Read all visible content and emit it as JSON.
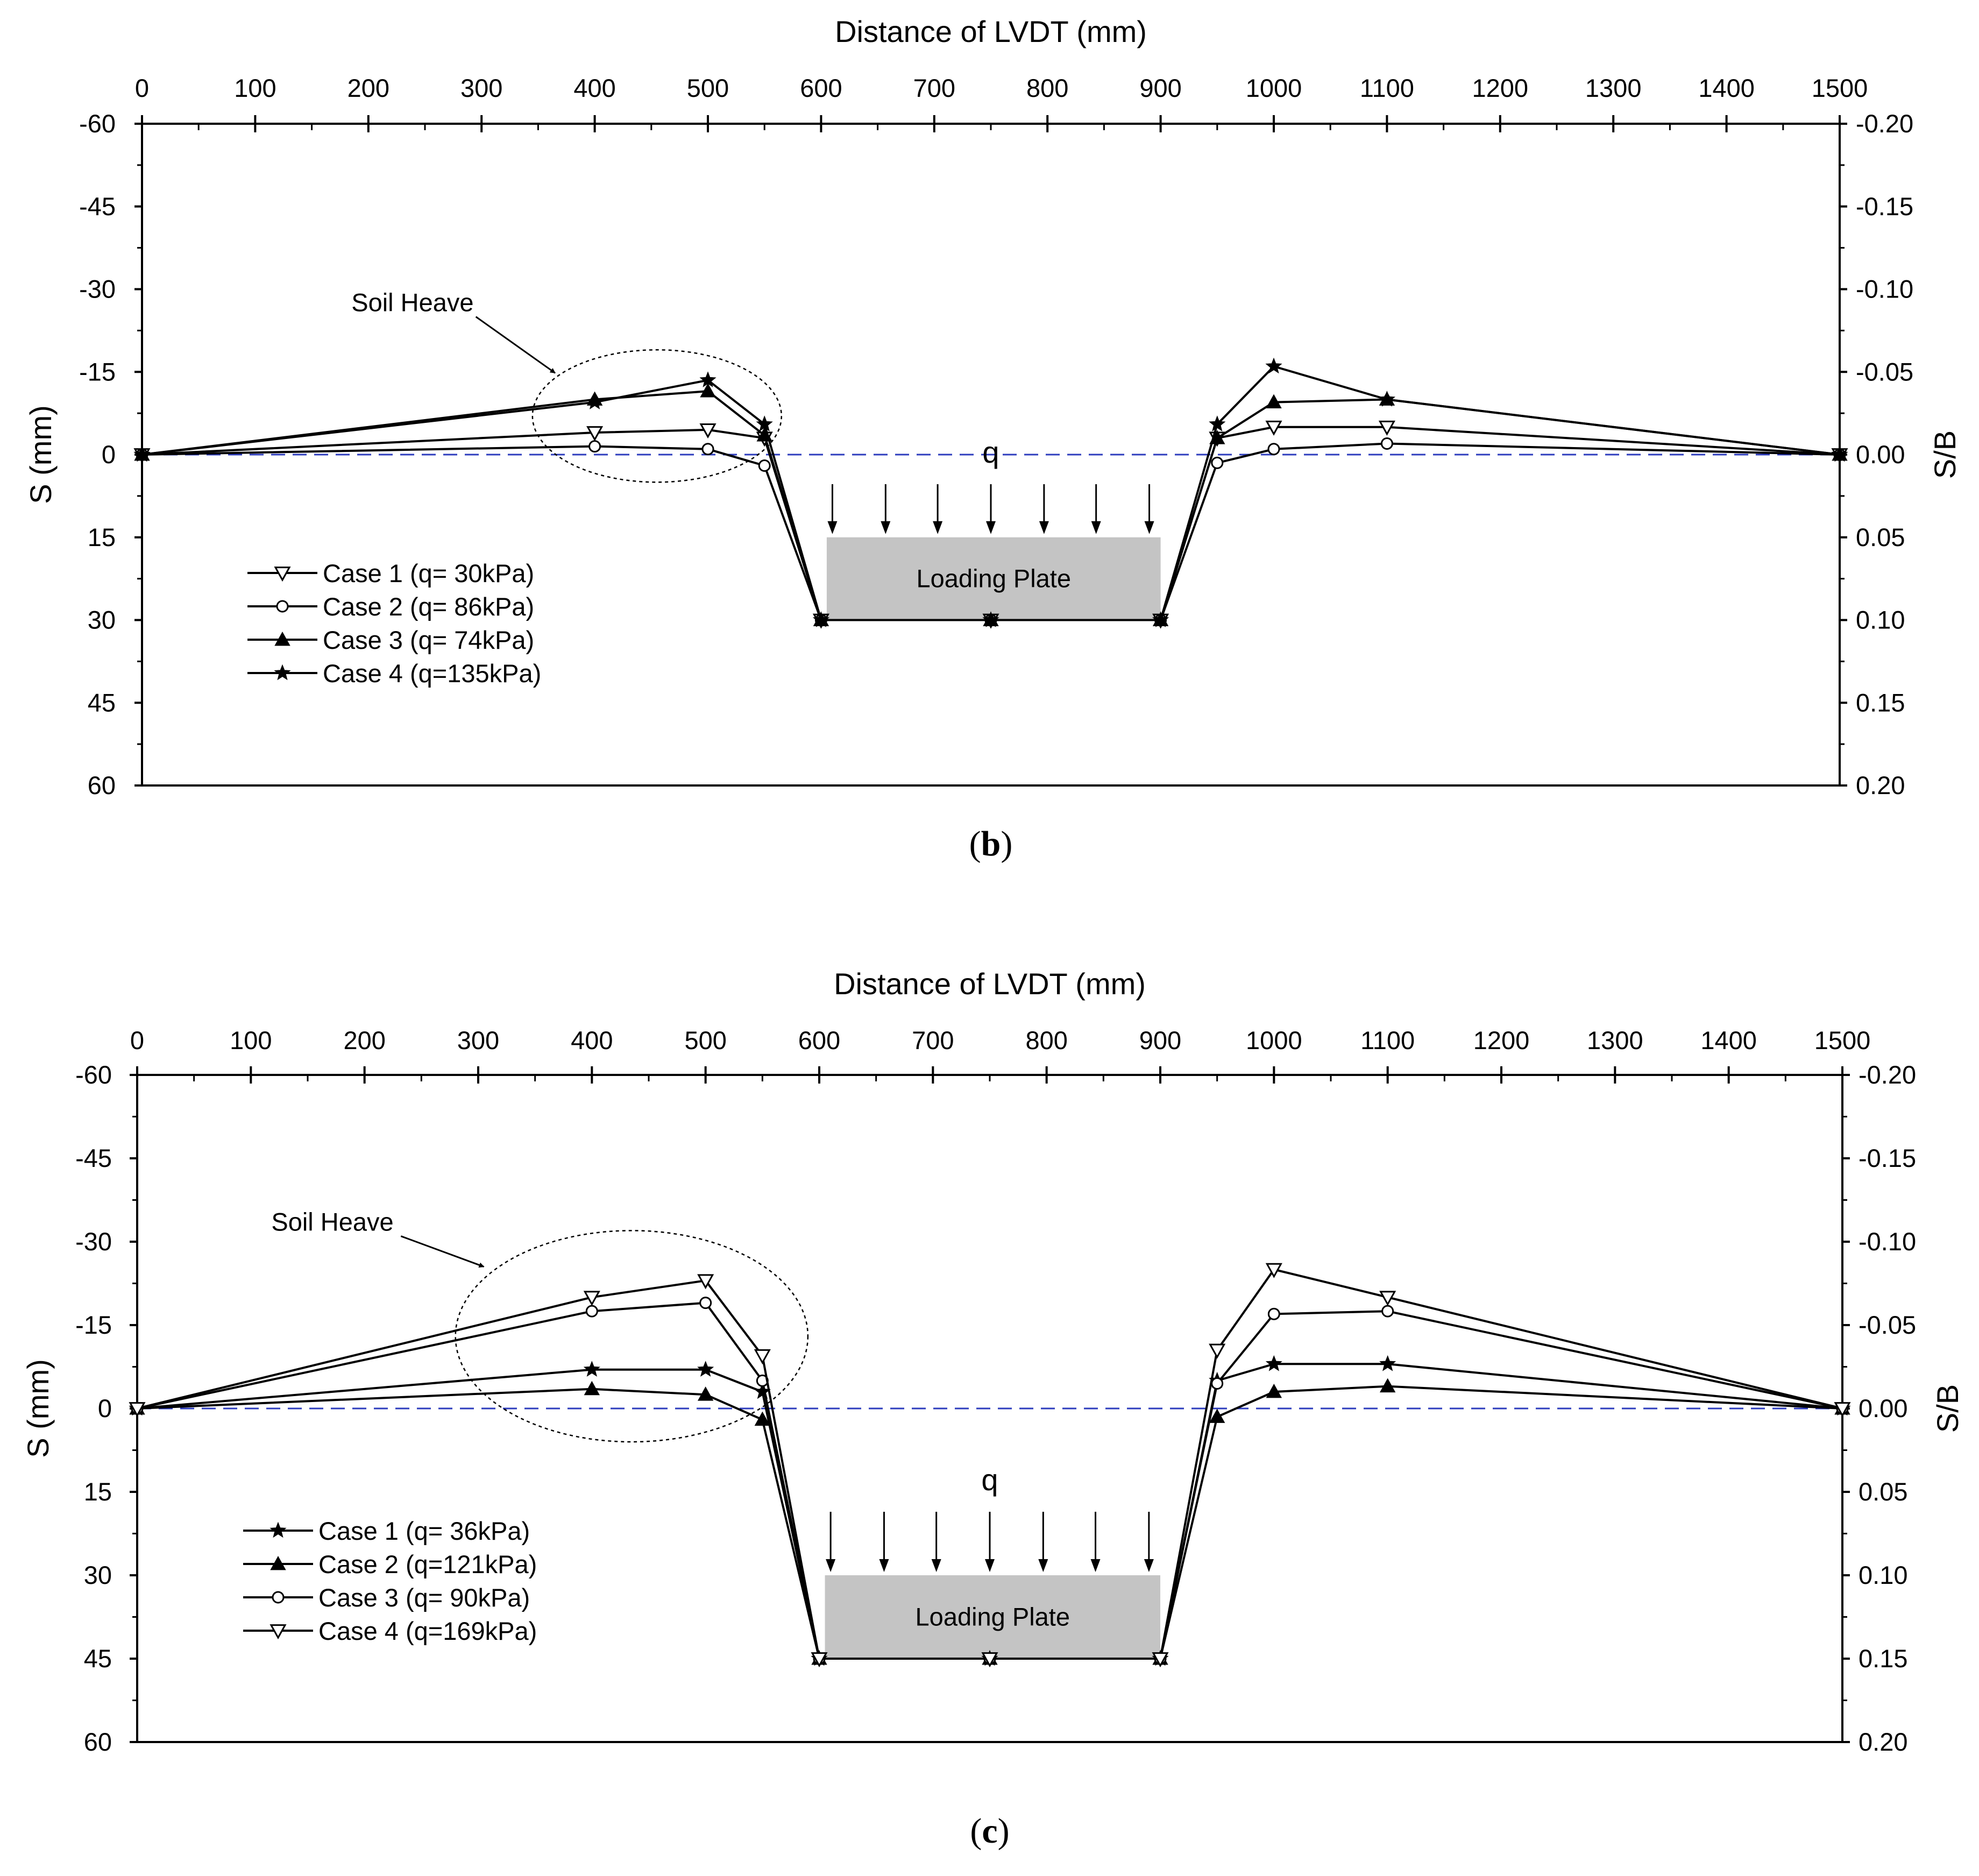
{
  "chart_data": [
    {
      "id": "b",
      "type": "line",
      "caption": {
        "open": "(",
        "letter": "b",
        "close": ")"
      },
      "xlabel": "Distance of LVDT (mm)",
      "ylabel": "S (mm)",
      "y2label": "S/B",
      "xlim": [
        0,
        1500
      ],
      "ylim": [
        -60,
        60
      ],
      "y_inverted": true,
      "xticks": [
        0,
        100,
        200,
        300,
        400,
        500,
        600,
        700,
        800,
        900,
        1000,
        1100,
        1200,
        1300,
        1400,
        1500
      ],
      "xticks_minor": [
        50,
        150,
        250,
        350,
        450,
        550,
        650,
        750,
        850,
        950,
        1050,
        1150,
        1250,
        1350,
        1450
      ],
      "yticks": [
        "-60",
        "-45",
        "-30",
        "-15",
        "0",
        "15",
        "30",
        "45",
        "60"
      ],
      "y2ticks": [
        "-0.20",
        "-0.15",
        "-0.10",
        "-0.05",
        "0.00",
        "0.05",
        "0.10",
        "0.15",
        "0.20"
      ],
      "reference_line": {
        "y": 0,
        "color": "#2e3dbd"
      },
      "load_label": "q",
      "arrows_x": [
        610,
        657,
        703,
        750,
        797,
        843,
        890
      ],
      "plate": {
        "x": [
          605,
          900
        ],
        "y": [
          15,
          30
        ],
        "label": "Loading Plate",
        "color": "#c4c4c4"
      },
      "annotation": {
        "text": "Soil Heave",
        "text_at": [
          185,
          -26
        ],
        "arrow_from": [
          295,
          -25
        ],
        "arrow_to": [
          365,
          -14.8
        ],
        "ellipse_center": [
          455,
          -7
        ],
        "ellipse_radius": [
          110,
          12
        ]
      },
      "series": [
        {
          "name": "Case 1 (q= 30kPa)",
          "marker": "tri-down-open",
          "x": [
            0,
            400,
            500,
            550,
            600,
            750,
            900,
            950,
            1000,
            1100,
            1500
          ],
          "y": [
            0,
            -4,
            -4.5,
            -3,
            30,
            30,
            30,
            -3,
            -5,
            -5,
            0
          ]
        },
        {
          "name": "Case 2 (q= 86kPa)",
          "marker": "circle-open",
          "x": [
            0,
            400,
            500,
            550,
            600,
            750,
            900,
            950,
            1000,
            1100,
            1500
          ],
          "y": [
            0,
            -1.5,
            -1,
            2,
            30,
            30,
            30,
            1.5,
            -1,
            -2,
            0
          ]
        },
        {
          "name": "Case 3 (q= 74kPa)",
          "marker": "tri-up-filled",
          "x": [
            0,
            400,
            500,
            550,
            600,
            750,
            900,
            950,
            1000,
            1100,
            1500
          ],
          "y": [
            0,
            -10,
            -11.5,
            -3.5,
            30,
            30,
            30,
            -3,
            -9.5,
            -10,
            0
          ]
        },
        {
          "name": "Case 4 (q=135kPa)",
          "marker": "star-filled",
          "x": [
            0,
            400,
            500,
            550,
            600,
            750,
            900,
            950,
            1000,
            1100,
            1500
          ],
          "y": [
            0,
            -9.5,
            -13.5,
            -5.5,
            30,
            30,
            30,
            -5.5,
            -16,
            -10,
            0
          ]
        }
      ]
    },
    {
      "id": "c",
      "type": "line",
      "caption": {
        "open": "(",
        "letter": "c",
        "close": ")"
      },
      "xlabel": "Distance of LVDT (mm)",
      "ylabel": "S (mm)",
      "y2label": "S/B",
      "xlim": [
        0,
        1500
      ],
      "ylim": [
        -60,
        60
      ],
      "y_inverted": true,
      "xticks": [
        0,
        100,
        200,
        300,
        400,
        500,
        600,
        700,
        800,
        900,
        1000,
        1100,
        1200,
        1300,
        1400,
        1500
      ],
      "xticks_minor": [
        50,
        150,
        250,
        350,
        450,
        550,
        650,
        750,
        850,
        950,
        1050,
        1150,
        1250,
        1350,
        1450
      ],
      "yticks": [
        "-60",
        "-45",
        "-30",
        "-15",
        "0",
        "15",
        "30",
        "45",
        "60"
      ],
      "y2ticks": [
        "-0.20",
        "-0.15",
        "-0.10",
        "-0.05",
        "0.00",
        "0.05",
        "0.10",
        "0.15",
        "0.20"
      ],
      "reference_line": {
        "y": 0,
        "color": "#2e3dbd"
      },
      "load_label": "q",
      "arrows_x": [
        610,
        657,
        703,
        750,
        797,
        843,
        890
      ],
      "plate": {
        "x": [
          605,
          900
        ],
        "y": [
          30,
          45
        ],
        "label": "Loading Plate",
        "color": "#c4c4c4"
      },
      "annotation": {
        "text": "Soil Heave",
        "text_at": [
          118,
          -32
        ],
        "arrow_from": [
          232,
          -31
        ],
        "arrow_to": [
          305,
          -25.5
        ],
        "ellipse_center": [
          435,
          -13
        ],
        "ellipse_radius": [
          155,
          19
        ]
      },
      "series": [
        {
          "name": "Case 1 (q= 36kPa)",
          "marker": "star-filled",
          "x": [
            0,
            400,
            500,
            550,
            600,
            750,
            900,
            950,
            1000,
            1100,
            1500
          ],
          "y": [
            0,
            -7,
            -7,
            -3,
            45,
            45,
            45,
            -5,
            -8,
            -8,
            0
          ]
        },
        {
          "name": "Case 2 (q=121kPa)",
          "marker": "tri-up-filled",
          "x": [
            0,
            400,
            500,
            550,
            600,
            750,
            900,
            950,
            1000,
            1100,
            1500
          ],
          "y": [
            0,
            -3.5,
            -2.5,
            2,
            45,
            45,
            45,
            1.5,
            -3,
            -4,
            0
          ]
        },
        {
          "name": "Case 3 (q= 90kPa)",
          "marker": "circle-open",
          "x": [
            0,
            400,
            500,
            550,
            600,
            750,
            900,
            950,
            1000,
            1100,
            1500
          ],
          "y": [
            0,
            -17.5,
            -19,
            -5,
            45,
            45,
            45,
            -4.5,
            -17,
            -17.5,
            0
          ]
        },
        {
          "name": "Case 4 (q=169kPa)",
          "marker": "tri-down-open",
          "x": [
            0,
            400,
            500,
            550,
            600,
            750,
            900,
            950,
            1000,
            1100,
            1500
          ],
          "y": [
            0,
            -20,
            -23,
            -9.5,
            45,
            45,
            45,
            -10.5,
            -25,
            -20,
            0
          ]
        }
      ]
    }
  ]
}
